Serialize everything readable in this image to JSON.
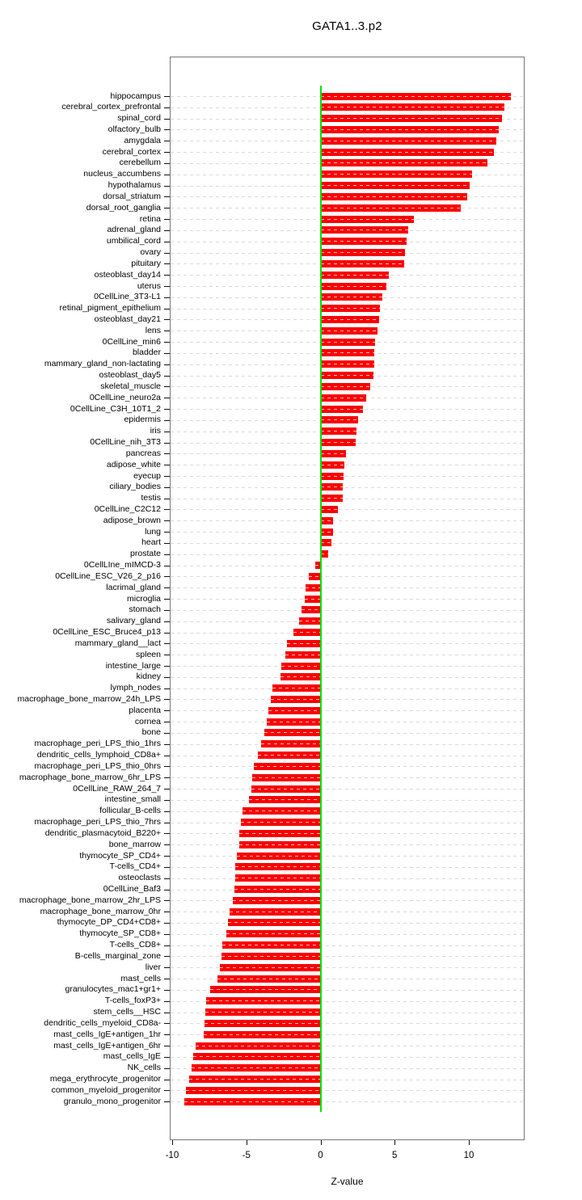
{
  "title": "GATA1..3.p2",
  "chart_data": {
    "type": "bar",
    "orientation": "horizontal",
    "title": "GATA1..3.p2",
    "xlabel": "Z-value",
    "ylabel": "",
    "x_ticks": [
      -10,
      -5,
      0,
      5,
      10
    ],
    "xlim": [
      -10.2,
      13.8
    ],
    "grid": "dashed-horizontal-per-row",
    "bar_color": "#fb0000",
    "zero_line_color": "#00e500",
    "categories": [
      "hippocampus",
      "cerebral_cortex_prefrontal",
      "spinal_cord",
      "olfactory_bulb",
      "amygdala",
      "cerebral_cortex",
      "cerebellum",
      "nucleus_accumbens",
      "hypothalamus",
      "dorsal_striatum",
      "dorsal_root_ganglia",
      "retina",
      "adrenal_gland",
      "umbilical_cord",
      "ovary",
      "pituitary",
      "osteoblast_day14",
      "uterus",
      "0CellLine_3T3-L1",
      "retinal_pigment_epithelium",
      "osteoblast_day21",
      "lens",
      "0CellLine_min6",
      "bladder",
      "mammary_gland_non-lactating",
      "osteoblast_day5",
      "skeletal_muscle",
      "0CellLine_neuro2a",
      "0CellLine_C3H_10T1_2",
      "epidermis",
      "iris",
      "0CellLine_nih_3T3",
      "pancreas",
      "adipose_white",
      "eyecup",
      "ciliary_bodies",
      "testis",
      "0CellLine_C2C12",
      "adipose_brown",
      "lung",
      "heart",
      "prostate",
      "0CellLIne_mIMCD-3",
      "0CellLine_ESC_V26_2_p16",
      "lacrimal_gland",
      "microglia",
      "stomach",
      "salivary_gland",
      "0CellLine_ESC_Bruce4_p13",
      "mammary_gland__lact",
      "spleen",
      "intestine_large",
      "kidney",
      "lymph_nodes",
      "macrophage_bone_marrow_24h_LPS",
      "placenta",
      "cornea",
      "bone",
      "macrophage_peri_LPS_thio_1hrs",
      "dendritic_cells_lymphoid_CD8a+",
      "macrophage_peri_LPS_thio_0hrs",
      "macrophage_bone_marrow_6hr_LPS",
      "0CellLine_RAW_264_7",
      "intestine_small",
      "follicular_B-cells",
      "macrophage_peri_LPS_thio_7hrs",
      "dendritic_plasmacytoid_B220+",
      "bone_marrow",
      "thymocyte_SP_CD4+",
      "T-cells_CD4+",
      "osteoclasts",
      "0CellLine_Baf3",
      "macrophage_bone_marrow_2hr_LPS",
      "macrophage_bone_marrow_0hr",
      "thymocyte_DP_CD4+CD8+",
      "thymocyte_SP_CD8+",
      "T-cells_CD8+",
      "B-cells_marginal_zone",
      "liver",
      "mast_cells",
      "granulocytes_mac1+gr1+",
      "T-cells_foxP3+",
      "stem_cells__HSC",
      "dendritic_cells_myeloid_CD8a-",
      "mast_cells_IgE+antigen_1hr",
      "mast_cells_IgE+antigen_6hr",
      "mast_cells_IgE",
      "NK_cells",
      "mega_erythrocyte_progenitor",
      "common_myeloid_progenitor",
      "granulo_mono_progenitor"
    ],
    "values": [
      12.85,
      12.4,
      12.25,
      12.0,
      11.85,
      11.7,
      11.25,
      10.2,
      10.05,
      9.9,
      9.45,
      6.3,
      5.9,
      5.8,
      5.7,
      5.65,
      4.6,
      4.45,
      4.15,
      4.0,
      3.95,
      3.85,
      3.7,
      3.65,
      3.6,
      3.55,
      3.35,
      3.1,
      2.85,
      2.55,
      2.45,
      2.35,
      1.7,
      1.6,
      1.55,
      1.5,
      1.5,
      1.15,
      0.85,
      0.85,
      0.75,
      0.5,
      -0.35,
      -0.8,
      -1.0,
      -1.05,
      -1.3,
      -1.45,
      -1.85,
      -2.25,
      -2.35,
      -2.65,
      -2.7,
      -3.25,
      -3.35,
      -3.5,
      -3.65,
      -3.8,
      -4.0,
      -4.2,
      -4.5,
      -4.6,
      -4.65,
      -4.85,
      -5.25,
      -5.35,
      -5.5,
      -5.5,
      -5.65,
      -5.75,
      -5.75,
      -5.8,
      -5.9,
      -6.15,
      -6.25,
      -6.35,
      -6.6,
      -6.7,
      -6.8,
      -6.95,
      -7.45,
      -7.7,
      -7.75,
      -7.8,
      -7.9,
      -8.4,
      -8.6,
      -8.7,
      -8.85,
      -9.05,
      -9.2
    ]
  }
}
